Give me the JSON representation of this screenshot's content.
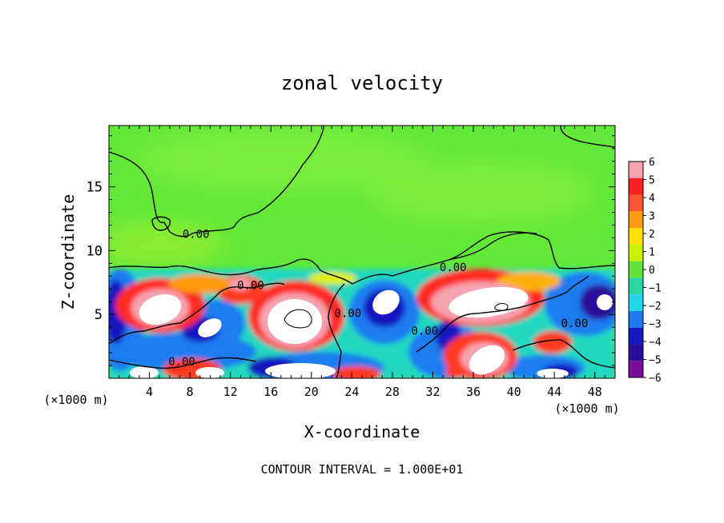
{
  "chart_data": {
    "type": "heatmap",
    "title": "zonal velocity",
    "xlabel": "X-coordinate",
    "ylabel": "Z-coordinate",
    "x_unit_label_left": "(×1000 m)",
    "x_unit_label_right": "(×1000 m)",
    "footer": "CONTOUR INTERVAL = 1.000E+01",
    "xlim": [
      0,
      50
    ],
    "ylim": [
      0,
      19.8
    ],
    "x_ticks": [
      4,
      8,
      12,
      16,
      20,
      24,
      28,
      32,
      36,
      40,
      44,
      48
    ],
    "x_tick_labels": [
      "4",
      "8",
      "12",
      "16",
      "20",
      "24",
      "28",
      "32",
      "36",
      "40",
      "44",
      "48"
    ],
    "y_ticks": [
      5,
      10,
      15
    ],
    "y_tick_labels": [
      "5",
      "10",
      "15"
    ],
    "colorbar": {
      "min": -6,
      "max": 6,
      "levels": [
        6,
        5,
        4,
        3,
        2,
        1,
        0,
        -1,
        -2,
        -3,
        -4,
        -5,
        -6
      ],
      "tick_labels": [
        "6",
        "5",
        "4",
        "3",
        "2",
        "1",
        "0",
        "−1",
        "−2",
        "−3",
        "−4",
        "−5",
        "−6"
      ],
      "colors": [
        "#f7a3b0",
        "#ff2020",
        "#ff5530",
        "#ff9a10",
        "#ffe000",
        "#c8f000",
        "#5ee43a",
        "#2ad6a4",
        "#20d8e8",
        "#1a7cf0",
        "#1818c0",
        "#2a0c9a",
        "#7a0c9a"
      ]
    },
    "contour_labels": [
      {
        "text": "0.00",
        "x": 8.6,
        "y": 11.0
      },
      {
        "text": "0.00",
        "x": 14.0,
        "y": 7.0
      },
      {
        "text": "0.00",
        "x": 34.0,
        "y": 8.4
      },
      {
        "text": "0.00",
        "x": 23.6,
        "y": 4.8
      },
      {
        "text": "0.00",
        "x": 31.2,
        "y": 3.4
      },
      {
        "text": "0.00",
        "x": 46.0,
        "y": 4.0
      },
      {
        "text": "0.00",
        "x": 7.2,
        "y": 1.0
      }
    ],
    "features": [
      {
        "sign": "positive",
        "value": 6,
        "x": 4.6,
        "y": 5.6
      },
      {
        "sign": "positive",
        "value": 6,
        "x": 19.4,
        "y": 4.6
      },
      {
        "sign": "positive",
        "value": 6,
        "x": 37.0,
        "y": 5.6
      },
      {
        "sign": "positive",
        "value": 6,
        "x": 38.0,
        "y": 2.0
      },
      {
        "sign": "positive",
        "value": 6,
        "x": 13.6,
        "y": 7.6
      },
      {
        "sign": "negative",
        "value": -6,
        "x": 11.0,
        "y": 4.2
      },
      {
        "sign": "negative",
        "value": -6,
        "x": 27.0,
        "y": 5.6
      },
      {
        "sign": "negative",
        "value": -6,
        "x": 49.0,
        "y": 6.2
      },
      {
        "sign": "negative",
        "value": -6,
        "x": 1.0,
        "y": 5.0
      },
      {
        "sign": "negative",
        "value": -6,
        "x": 33.0,
        "y": 3.0
      },
      {
        "sign": "negative",
        "value": -6,
        "x": 17.0,
        "y": 1.0
      }
    ]
  }
}
